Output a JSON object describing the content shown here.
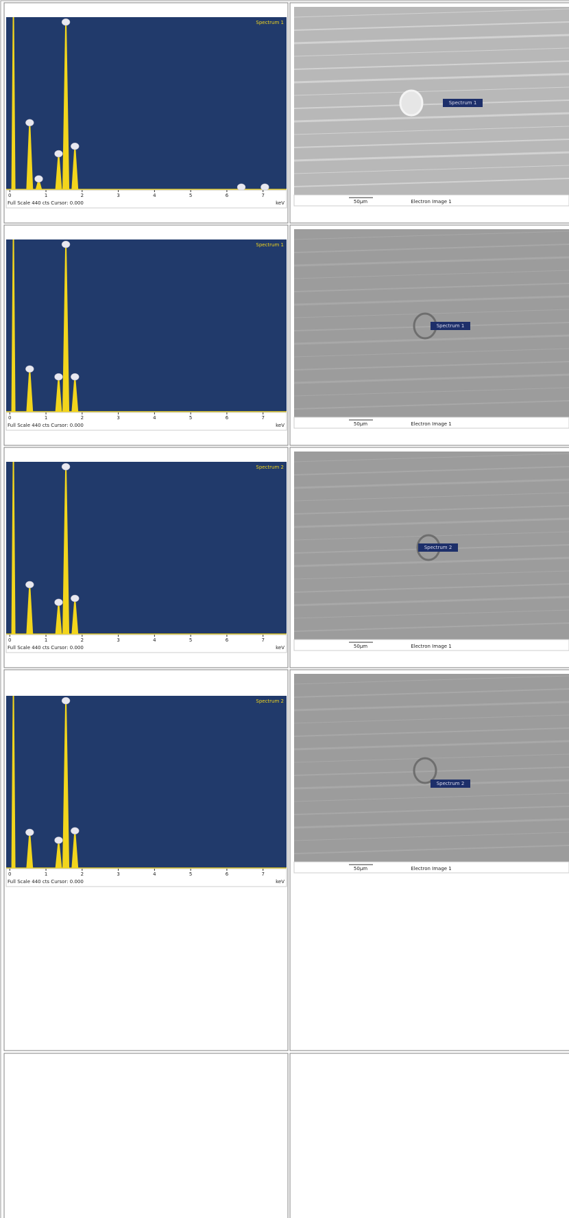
{
  "chart_data": [
    {
      "type": "spectrum",
      "title": "Spectrum 1",
      "footer": "Full Scale 440 cts Cursor: 0.000",
      "xlabel": "keV",
      "x": [
        0.1,
        0.55,
        0.8,
        1.35,
        1.55,
        1.8,
        6.4,
        7.05
      ],
      "values": [
        440,
        168,
        25,
        89,
        424,
        108,
        4,
        4
      ],
      "xlim": [
        -0.1,
        7.65
      ],
      "ylim": [
        0,
        440
      ],
      "xticks": [
        0,
        1,
        2,
        3,
        4,
        5,
        6,
        7
      ],
      "color": "#f2d51c",
      "background": "#213a6b"
    },
    {
      "type": "spectrum",
      "title": "Spectrum 1",
      "footer": "Full Scale 440 cts Cursor: 0.000",
      "xlabel": "keV",
      "x": [
        0.1,
        0.55,
        1.35,
        1.55,
        1.8
      ],
      "values": [
        440,
        107,
        87,
        424,
        87
      ],
      "xlim": [
        -0.1,
        7.65
      ],
      "ylim": [
        0,
        440
      ],
      "xticks": [
        0,
        1,
        2,
        3,
        4,
        5,
        6,
        7
      ],
      "color": "#f2d51c",
      "background": "#213a6b"
    },
    {
      "type": "spectrum",
      "title": "Spectrum 2",
      "footer": "Full Scale 440 cts Cursor: 0.000",
      "xlabel": "keV",
      "x": [
        0.1,
        0.55,
        1.35,
        1.55,
        1.8
      ],
      "values": [
        440,
        124,
        79,
        424,
        89
      ],
      "xlim": [
        -0.1,
        7.65
      ],
      "ylim": [
        0,
        440
      ],
      "xticks": [
        0,
        1,
        2,
        3,
        4,
        5,
        6,
        7
      ],
      "color": "#f2d51c",
      "background": "#213a6b"
    },
    {
      "type": "spectrum",
      "title": "Spectrum 2",
      "footer": "Full Scale 440 cts Cursor: 0.000",
      "xlabel": "keV",
      "x": [
        0.1,
        0.55,
        1.35,
        1.55,
        1.8
      ],
      "values": [
        440,
        89,
        69,
        424,
        93
      ],
      "xlim": [
        -0.1,
        7.65
      ],
      "ylim": [
        0,
        440
      ],
      "xticks": [
        0,
        1,
        2,
        3,
        4,
        5,
        6,
        7
      ],
      "color": "#f2d51c",
      "background": "#213a6b"
    }
  ],
  "images": [
    {
      "label": "Spectrum 1",
      "scale": "50µm",
      "caption": "Electron Image 1"
    },
    {
      "label": "Spectrum 1",
      "scale": "50µm",
      "caption": "Electron Image 1"
    },
    {
      "label": "Spectrum 2",
      "scale": "50µm",
      "caption": "Electron Image 1"
    },
    {
      "label": "Spectrum 2",
      "scale": "50µm",
      "caption": "Electron Image 1"
    }
  ]
}
